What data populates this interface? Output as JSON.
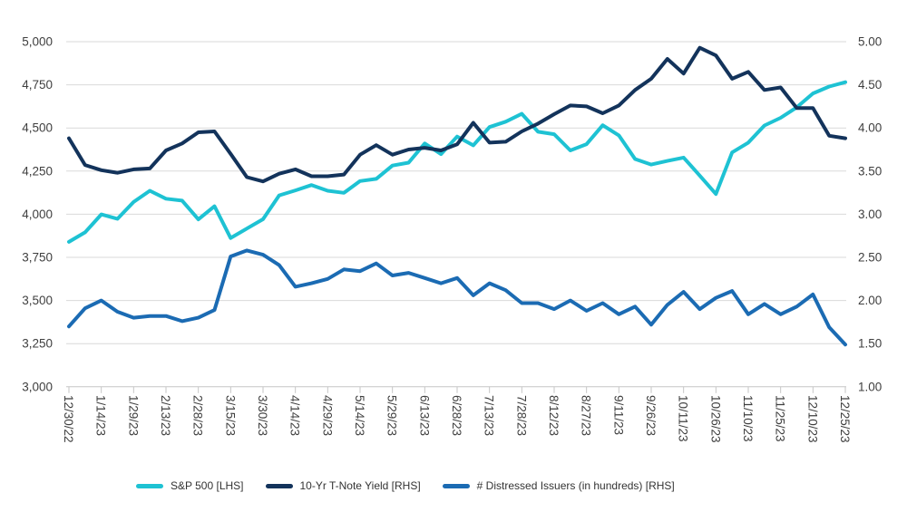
{
  "chart_data": {
    "type": "line",
    "x_tick_labels": [
      "12/30/22",
      "1/14/23",
      "1/29/23",
      "2/13/23",
      "2/28/23",
      "3/15/23",
      "3/30/23",
      "4/14/23",
      "4/29/23",
      "5/14/23",
      "5/29/23",
      "6/13/23",
      "6/28/23",
      "7/13/23",
      "7/28/23",
      "8/12/23",
      "8/27/23",
      "9/11/23",
      "9/26/23",
      "10/11/23",
      "10/26/23",
      "11/10/23",
      "11/25/23",
      "12/10/23",
      "12/25/23"
    ],
    "points_per_label_interval": 2,
    "left_axis": {
      "min": 3000,
      "max": 5000,
      "tick_labels": [
        "5,000",
        "4,750",
        "4,500",
        "4,250",
        "4,000",
        "3,750",
        "3,500",
        "3,250",
        "3,000"
      ]
    },
    "right_axis": {
      "min": 1.0,
      "max": 5.0,
      "tick_labels": [
        "5.00",
        "4.50",
        "4.00",
        "3.50",
        "3.00",
        "2.50",
        "2.00",
        "1.50",
        "1.00"
      ]
    },
    "grid": "horizontal",
    "legend_position": "bottom",
    "series": [
      {
        "name": "S&P 500 [LHS]",
        "axis": "left",
        "color": "#1EC2D3",
        "values": [
          3840,
          3895,
          3999,
          3973,
          4071,
          4136,
          4090,
          4079,
          3970,
          4046,
          3862,
          3917,
          3971,
          4109,
          4138,
          4169,
          4136,
          4124,
          4192,
          4205,
          4282,
          4299,
          4410,
          4348,
          4450,
          4399,
          4505,
          4536,
          4582,
          4478,
          4464,
          4370,
          4406,
          4516,
          4457,
          4320,
          4288,
          4309,
          4328,
          4224,
          4117,
          4358,
          4415,
          4514,
          4559,
          4620,
          4700,
          4740,
          4765
        ]
      },
      {
        "name": "10-Yr T-Note Yield [RHS]",
        "axis": "right",
        "color": "#13335B",
        "values": [
          3.88,
          3.57,
          3.51,
          3.48,
          3.52,
          3.53,
          3.74,
          3.82,
          3.95,
          3.96,
          3.7,
          3.43,
          3.38,
          3.47,
          3.52,
          3.44,
          3.44,
          3.46,
          3.69,
          3.8,
          3.69,
          3.75,
          3.77,
          3.74,
          3.81,
          4.06,
          3.83,
          3.84,
          3.96,
          4.05,
          4.16,
          4.26,
          4.25,
          4.17,
          4.26,
          4.44,
          4.57,
          4.8,
          4.63,
          4.93,
          4.84,
          4.57,
          4.65,
          4.44,
          4.47,
          4.23,
          4.23,
          3.91,
          3.88
        ]
      },
      {
        "name": "# Distressed Issuers (in hundreds) [RHS]",
        "axis": "right",
        "color": "#1B6BB3",
        "values": [
          1.7,
          1.91,
          2.0,
          1.87,
          1.8,
          1.82,
          1.82,
          1.76,
          1.8,
          1.89,
          2.51,
          2.58,
          2.53,
          2.41,
          2.16,
          2.2,
          2.25,
          2.36,
          2.34,
          2.43,
          2.29,
          2.32,
          2.26,
          2.2,
          2.26,
          2.06,
          2.2,
          2.12,
          1.97,
          1.97,
          1.9,
          2.0,
          1.88,
          1.97,
          1.84,
          1.93,
          1.72,
          1.95,
          2.1,
          1.9,
          2.03,
          2.11,
          1.84,
          1.96,
          1.84,
          1.93,
          2.07,
          1.69,
          1.49
        ]
      }
    ],
    "colors": {
      "gridline": "#D9D9D9",
      "axis_line": "#C6C6C6",
      "tick_text": "#3F3F3F",
      "legend_text": "#333333"
    }
  }
}
